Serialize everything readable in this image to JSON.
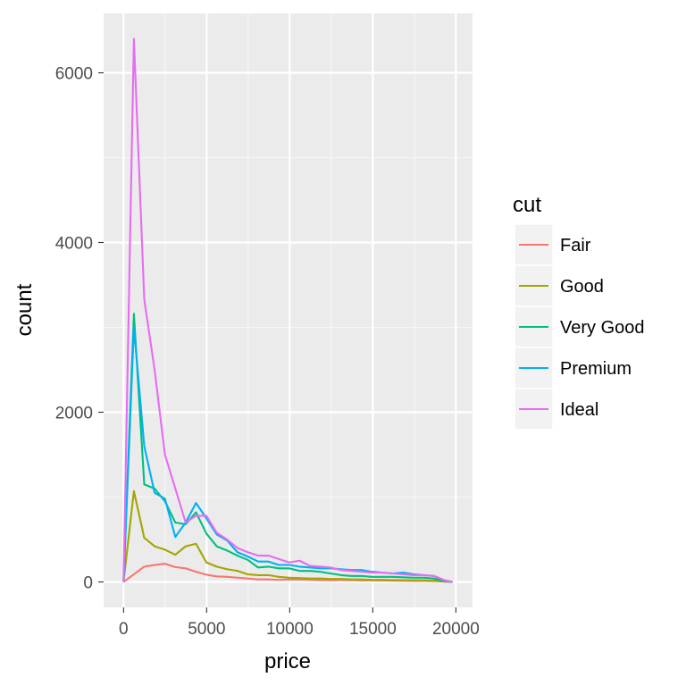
{
  "chart_data": {
    "type": "line",
    "xlabel": "price",
    "ylabel": "count",
    "xlim": [
      -1200,
      21000
    ],
    "ylim": [
      -300,
      6700
    ],
    "x_ticks": [
      0,
      5000,
      10000,
      15000,
      20000
    ],
    "x_tick_labels": [
      "0",
      "5000",
      "10000",
      "15000",
      "20000"
    ],
    "y_ticks": [
      0,
      2000,
      4000,
      6000
    ],
    "y_tick_labels": [
      "0",
      "2000",
      "4000",
      "6000"
    ],
    "grid": true,
    "legend": {
      "title": "cut",
      "position": "right"
    },
    "x": [
      0,
      623,
      1246,
      1869,
      2492,
      3115,
      3738,
      4361,
      4984,
      5607,
      6230,
      6853,
      7476,
      8099,
      8722,
      9345,
      9968,
      10591,
      11214,
      11837,
      12460,
      13083,
      13706,
      14329,
      14952,
      15575,
      16198,
      16821,
      17444,
      18067,
      18690,
      19313,
      19800
    ],
    "series": [
      {
        "name": "Fair",
        "color": "#F8766D",
        "values": [
          0,
          90,
          180,
          200,
          215,
          175,
          160,
          120,
          85,
          65,
          60,
          50,
          40,
          30,
          30,
          25,
          30,
          28,
          25,
          22,
          20,
          22,
          20,
          18,
          18,
          16,
          15,
          14,
          12,
          12,
          10,
          5,
          0
        ]
      },
      {
        "name": "Good",
        "color": "#A3A500",
        "values": [
          0,
          1070,
          520,
          420,
          380,
          320,
          420,
          450,
          230,
          180,
          150,
          130,
          90,
          80,
          80,
          60,
          50,
          45,
          40,
          40,
          35,
          35,
          30,
          30,
          25,
          25,
          22,
          20,
          20,
          20,
          15,
          5,
          0
        ]
      },
      {
        "name": "Very Good",
        "color": "#00BF7D",
        "values": [
          0,
          3160,
          1150,
          1100,
          950,
          700,
          680,
          820,
          570,
          420,
          370,
          310,
          260,
          170,
          180,
          160,
          160,
          130,
          130,
          120,
          100,
          80,
          70,
          70,
          60,
          60,
          60,
          55,
          50,
          50,
          40,
          10,
          0
        ]
      },
      {
        "name": "Premium",
        "color": "#00B0F6",
        "values": [
          0,
          3000,
          1600,
          1050,
          980,
          530,
          700,
          930,
          750,
          560,
          490,
          350,
          300,
          240,
          240,
          200,
          200,
          180,
          170,
          160,
          160,
          150,
          140,
          140,
          120,
          110,
          100,
          110,
          90,
          80,
          70,
          20,
          0
        ]
      },
      {
        "name": "Ideal",
        "color": "#E76BF3",
        "values": [
          0,
          6400,
          3330,
          2500,
          1500,
          1100,
          700,
          780,
          780,
          580,
          500,
          400,
          350,
          310,
          310,
          270,
          230,
          250,
          190,
          180,
          170,
          140,
          130,
          120,
          110,
          110,
          100,
          90,
          80,
          80,
          70,
          20,
          0
        ]
      }
    ]
  }
}
